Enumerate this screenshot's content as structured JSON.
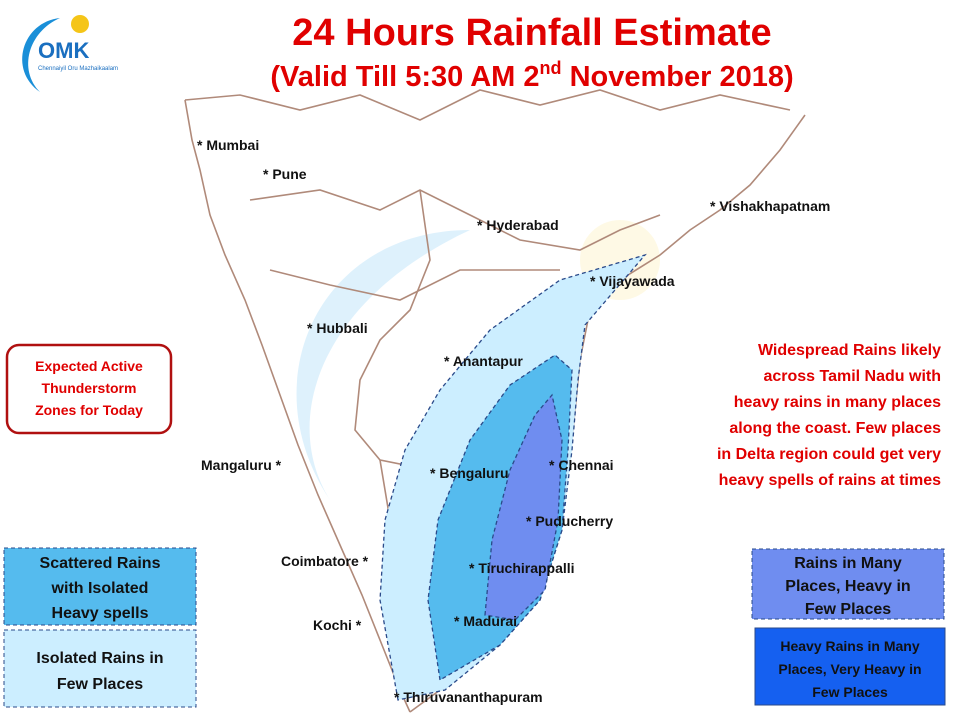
{
  "header": {
    "title": "24 Hours Rainfall Estimate",
    "subtitle_parts": [
      "(Valid Till 5:30 AM 2",
      "nd",
      " November 2018)"
    ]
  },
  "logo": {
    "text": "OMK",
    "tagline": "Chennaiyil Oru Mazhaikaalam"
  },
  "cities": [
    "* Mumbai",
    "* Pune",
    "* Hyderabad",
    "* Vishakhapatnam",
    "* Vijayawada",
    "* Hubbali",
    "* Anantapur",
    "Mangaluru *",
    "* Bengaluru",
    "* Chennai",
    "* Puducherry",
    "Coimbatore *",
    "* Tiruchirappalli",
    "Kochi *",
    "* Madurai",
    "* Thiruvananthapuram"
  ],
  "note": {
    "lines": [
      "Widespread Rains likely",
      "across Tamil Nadu with",
      "heavy rains in  many places",
      "along the coast.  Few places",
      "in Delta region could get very",
      "heavy spells of rains at times"
    ]
  },
  "legend": {
    "heading": {
      "lines": [
        "Expected Active",
        "Thunderstorm",
        "Zones for Today"
      ]
    },
    "items": [
      {
        "lines": [
          "Scattered Rains",
          "with Isolated",
          "Heavy spells"
        ]
      },
      {
        "lines": [
          "Isolated Rains in",
          "Few  Places"
        ]
      },
      {
        "lines": [
          "Rains in Many",
          "Places, Heavy in",
          "Few Places"
        ]
      },
      {
        "lines": [
          "Heavy Rains in Many",
          "Places, Very Heavy in",
          "Few Places"
        ]
      }
    ]
  }
}
